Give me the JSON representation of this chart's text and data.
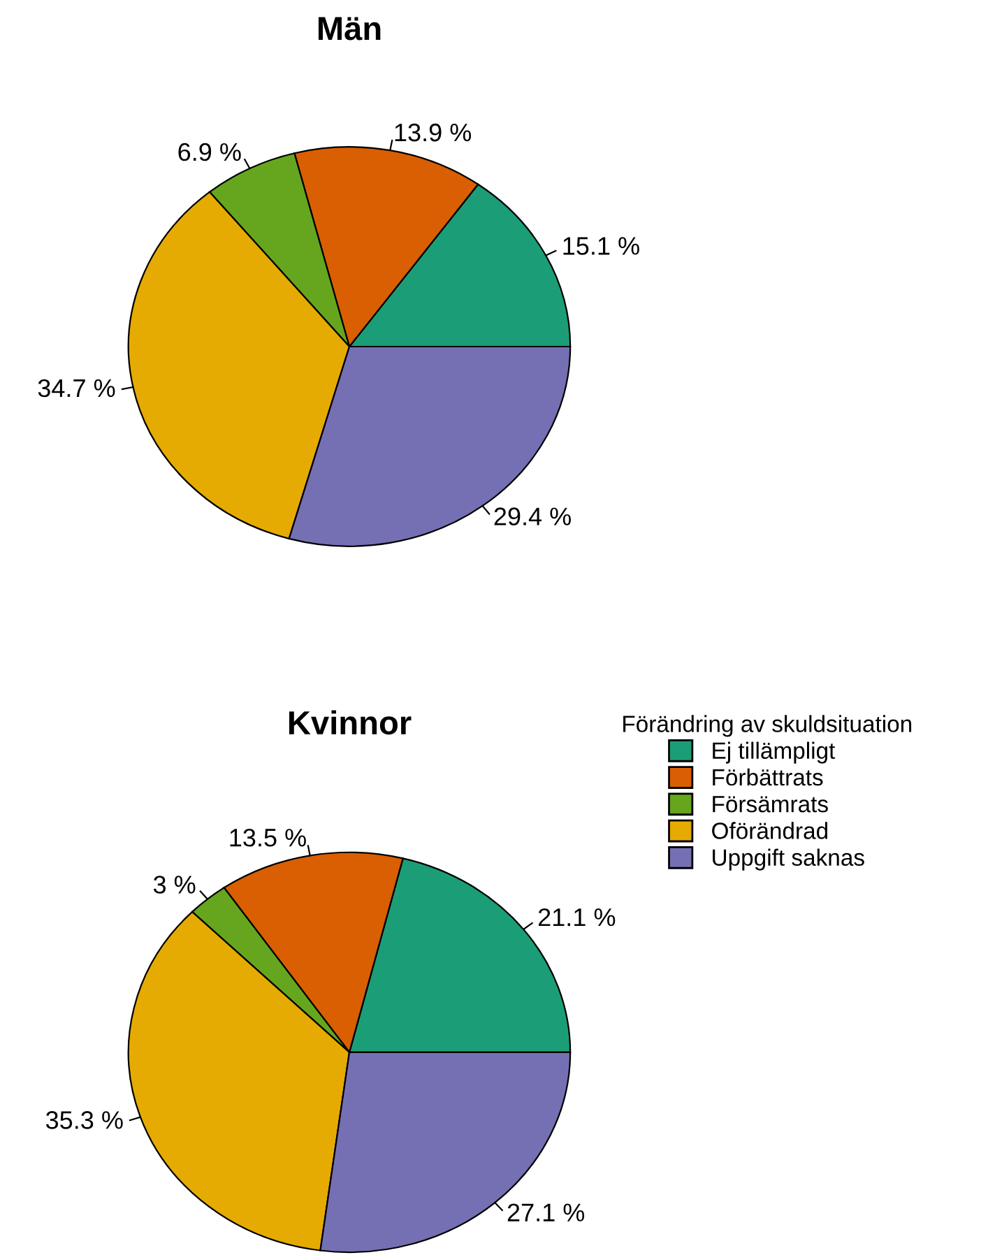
{
  "chart_data": {
    "type": "pie",
    "categories": [
      "Ej tillämpligt",
      "Förbättrats",
      "Försämrats",
      "Oförändrad",
      "Uppgift saknas"
    ],
    "colors": [
      "#1b9e77",
      "#d95f02",
      "#66a61e",
      "#e6ab02",
      "#7570b3"
    ],
    "legend": "right",
    "legend_title": "Förändring av skuldsituation",
    "series": [
      {
        "name": "Män",
        "values": [
          15.1,
          13.9,
          6.9,
          34.7,
          29.4
        ],
        "value_labels": [
          "15.1 %",
          "13.9 %",
          "6.9 %",
          "34.7 %",
          "29.4 %"
        ]
      },
      {
        "name": "Kvinnor",
        "values": [
          21.1,
          13.5,
          3,
          35.3,
          27.1
        ],
        "value_labels": [
          "21.1 %",
          "13.5 %",
          "3 %",
          "35.3 %",
          "27.1 %"
        ]
      }
    ]
  }
}
